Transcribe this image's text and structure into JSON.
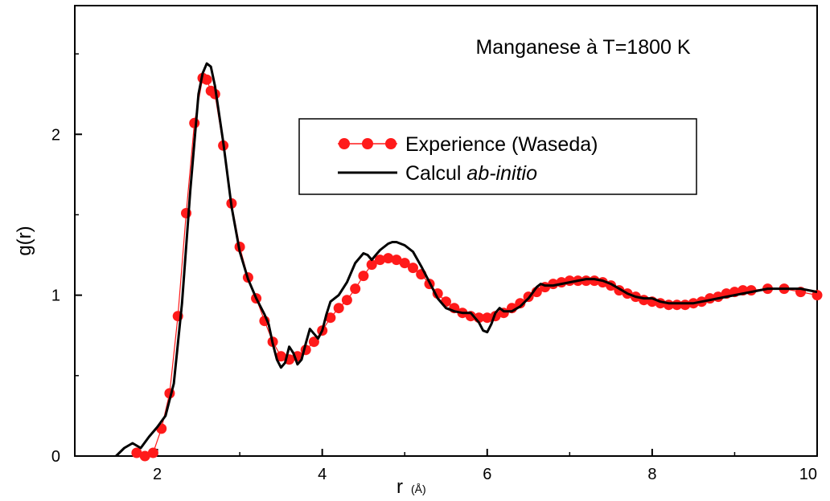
{
  "chart_data": {
    "type": "line",
    "title": "Manganese à T=1800 K",
    "xlabel": "r",
    "xlabel_unit": "(Å)",
    "ylabel": "g(r)",
    "xlim": [
      1.0,
      10.0
    ],
    "ylim": [
      0.0,
      2.8
    ],
    "xticks": [
      2,
      4,
      6,
      8,
      10
    ],
    "xtick_labels": [
      "2",
      "4",
      "6",
      "8",
      "10"
    ],
    "yticks": [
      0,
      1,
      2
    ],
    "ytick_labels": [
      "0",
      "1",
      "2"
    ],
    "grid": false,
    "legend_position": "upper-middle-right",
    "colors": {
      "experience": "#ff1a1a",
      "calcul": "#000000"
    },
    "legend": {
      "experience_label": "Experience (Waseda)",
      "calcul_prefix": "Calcul ",
      "calcul_italic": "ab-initio"
    },
    "series": [
      {
        "name": "Experience (Waseda)",
        "style": "line-with-markers",
        "x": [
          1.75,
          1.85,
          1.95,
          2.05,
          2.15,
          2.25,
          2.35,
          2.45,
          2.55,
          2.6,
          2.65,
          2.7,
          2.8,
          2.9,
          3.0,
          3.1,
          3.2,
          3.3,
          3.4,
          3.5,
          3.6,
          3.7,
          3.8,
          3.9,
          4.0,
          4.1,
          4.2,
          4.3,
          4.4,
          4.5,
          4.6,
          4.7,
          4.8,
          4.9,
          5.0,
          5.1,
          5.2,
          5.3,
          5.4,
          5.5,
          5.6,
          5.7,
          5.8,
          5.9,
          6.0,
          6.1,
          6.2,
          6.3,
          6.4,
          6.5,
          6.6,
          6.7,
          6.8,
          6.9,
          7.0,
          7.1,
          7.2,
          7.3,
          7.4,
          7.5,
          7.6,
          7.7,
          7.8,
          7.9,
          8.0,
          8.1,
          8.2,
          8.3,
          8.4,
          8.5,
          8.6,
          8.7,
          8.8,
          8.9,
          9.0,
          9.1,
          9.2,
          9.4,
          9.6,
          9.8,
          10.0
        ],
        "y": [
          0.02,
          0.0,
          0.02,
          0.17,
          0.39,
          0.87,
          1.51,
          2.07,
          2.35,
          2.34,
          2.27,
          2.25,
          1.93,
          1.57,
          1.3,
          1.11,
          0.98,
          0.84,
          0.71,
          0.62,
          0.6,
          0.62,
          0.66,
          0.71,
          0.78,
          0.86,
          0.92,
          0.97,
          1.04,
          1.12,
          1.19,
          1.22,
          1.23,
          1.22,
          1.2,
          1.17,
          1.13,
          1.07,
          1.01,
          0.96,
          0.92,
          0.89,
          0.87,
          0.86,
          0.86,
          0.87,
          0.89,
          0.92,
          0.95,
          0.99,
          1.02,
          1.05,
          1.07,
          1.08,
          1.09,
          1.09,
          1.09,
          1.09,
          1.08,
          1.06,
          1.03,
          1.01,
          0.99,
          0.97,
          0.96,
          0.95,
          0.94,
          0.94,
          0.94,
          0.95,
          0.96,
          0.98,
          0.99,
          1.01,
          1.02,
          1.03,
          1.03,
          1.04,
          1.04,
          1.02,
          1.0
        ]
      },
      {
        "name": "Calcul ab-initio",
        "style": "line",
        "x": [
          1.5,
          1.6,
          1.7,
          1.8,
          1.9,
          2.0,
          2.1,
          2.2,
          2.3,
          2.4,
          2.5,
          2.55,
          2.6,
          2.65,
          2.7,
          2.8,
          2.9,
          3.0,
          3.1,
          3.2,
          3.25,
          3.3,
          3.35,
          3.4,
          3.45,
          3.5,
          3.55,
          3.6,
          3.65,
          3.7,
          3.75,
          3.8,
          3.85,
          3.9,
          3.95,
          4.0,
          4.05,
          4.1,
          4.2,
          4.3,
          4.4,
          4.5,
          4.55,
          4.6,
          4.65,
          4.7,
          4.8,
          4.85,
          4.9,
          5.0,
          5.1,
          5.2,
          5.3,
          5.4,
          5.5,
          5.6,
          5.7,
          5.8,
          5.9,
          5.95,
          6.0,
          6.05,
          6.1,
          6.15,
          6.2,
          6.3,
          6.4,
          6.5,
          6.6,
          6.65,
          6.7,
          6.8,
          6.9,
          7.0,
          7.1,
          7.2,
          7.3,
          7.4,
          7.5,
          7.6,
          7.7,
          7.8,
          7.9,
          8.0,
          8.1,
          8.2,
          8.3,
          8.4,
          8.5,
          8.6,
          8.7,
          8.8,
          8.9,
          9.0,
          9.2,
          9.4,
          9.6,
          9.8,
          10.0
        ],
        "y": [
          0.0,
          0.05,
          0.08,
          0.05,
          0.12,
          0.18,
          0.25,
          0.45,
          0.95,
          1.65,
          2.25,
          2.38,
          2.44,
          2.42,
          2.3,
          1.95,
          1.55,
          1.27,
          1.1,
          0.98,
          0.93,
          0.88,
          0.82,
          0.7,
          0.6,
          0.55,
          0.58,
          0.68,
          0.64,
          0.57,
          0.6,
          0.7,
          0.79,
          0.76,
          0.73,
          0.78,
          0.88,
          0.96,
          1.0,
          1.08,
          1.2,
          1.26,
          1.25,
          1.22,
          1.25,
          1.28,
          1.32,
          1.33,
          1.33,
          1.31,
          1.27,
          1.18,
          1.08,
          0.98,
          0.92,
          0.9,
          0.89,
          0.89,
          0.83,
          0.78,
          0.77,
          0.82,
          0.89,
          0.92,
          0.9,
          0.9,
          0.93,
          0.98,
          1.05,
          1.07,
          1.06,
          1.06,
          1.07,
          1.08,
          1.09,
          1.1,
          1.1,
          1.09,
          1.07,
          1.04,
          1.01,
          0.99,
          0.98,
          0.98,
          0.96,
          0.95,
          0.95,
          0.95,
          0.95,
          0.96,
          0.97,
          0.98,
          0.99,
          1.0,
          1.02,
          1.04,
          1.04,
          1.04,
          1.02
        ]
      }
    ]
  }
}
